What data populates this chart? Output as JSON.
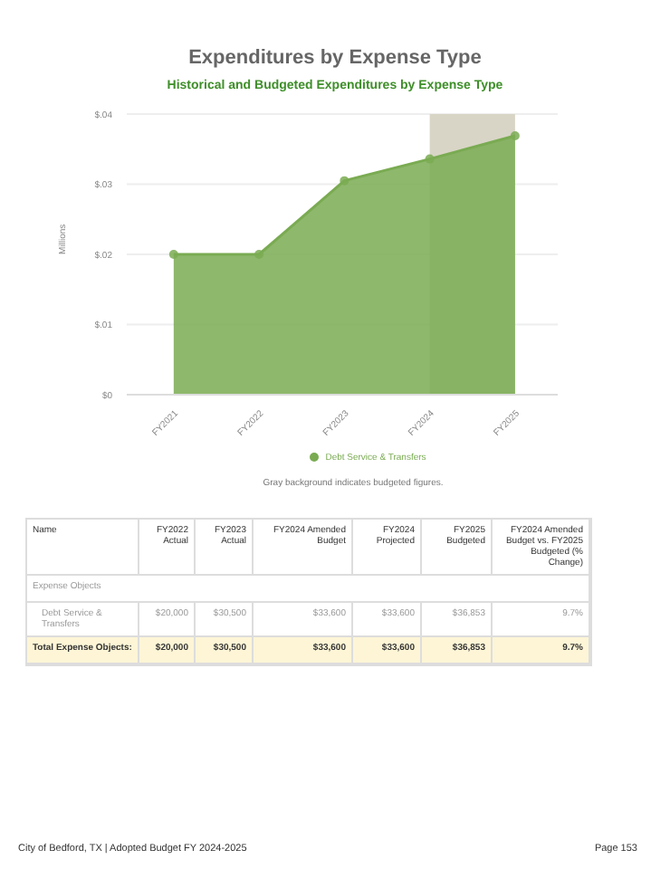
{
  "chart_data": {
    "type": "area",
    "title": "Expenditures by Expense Type",
    "subtitle": "Historical and Budgeted Expenditures by Expense Type",
    "ylabel": "Millions",
    "categories": [
      "FY2021",
      "FY2022",
      "FY2023",
      "FY2024",
      "FY2025"
    ],
    "series": [
      {
        "name": "Debt Service & Transfers",
        "color": "#7aab52",
        "values": [
          0.02,
          0.02,
          0.0305,
          0.0336,
          0.0369
        ]
      }
    ],
    "ylim": [
      0,
      0.04
    ],
    "yticks": [
      {
        "value": 0,
        "label": "$0"
      },
      {
        "value": 0.01,
        "label": "$.01"
      },
      {
        "value": 0.02,
        "label": "$.02"
      },
      {
        "value": 0.03,
        "label": "$.03"
      },
      {
        "value": 0.04,
        "label": "$.04"
      }
    ],
    "bands": [
      {
        "axis": "x",
        "from": "FY2024",
        "to": "FY2025",
        "color": "#d8d5c6"
      }
    ],
    "grid": "y",
    "legend": "bottom",
    "marker": "circle",
    "annotations": [
      "Gray background indicates budgeted figures.",
      "Name",
      "FY2022 Actual",
      "FY2023 Actual",
      "FY2024 Amended Budget",
      "FY2024 Projected",
      "FY2025 Budgeted",
      "FY2024 Amended Budget vs. FY2025 Budgeted (% Change)",
      "Expense Objects",
      "Debt Service & Transfers",
      "$20,000",
      "$30,500",
      "$33,600",
      "$33,600",
      "$36,853",
      "9.7%",
      "Total Expense Objects:",
      "$20,000",
      "$30,500",
      "$33,600",
      "$33,600",
      "$36,853",
      "9.7%",
      "City of Bedford, TX | Adopted Budget FY 2024-2025",
      "Page 153"
    ]
  }
}
